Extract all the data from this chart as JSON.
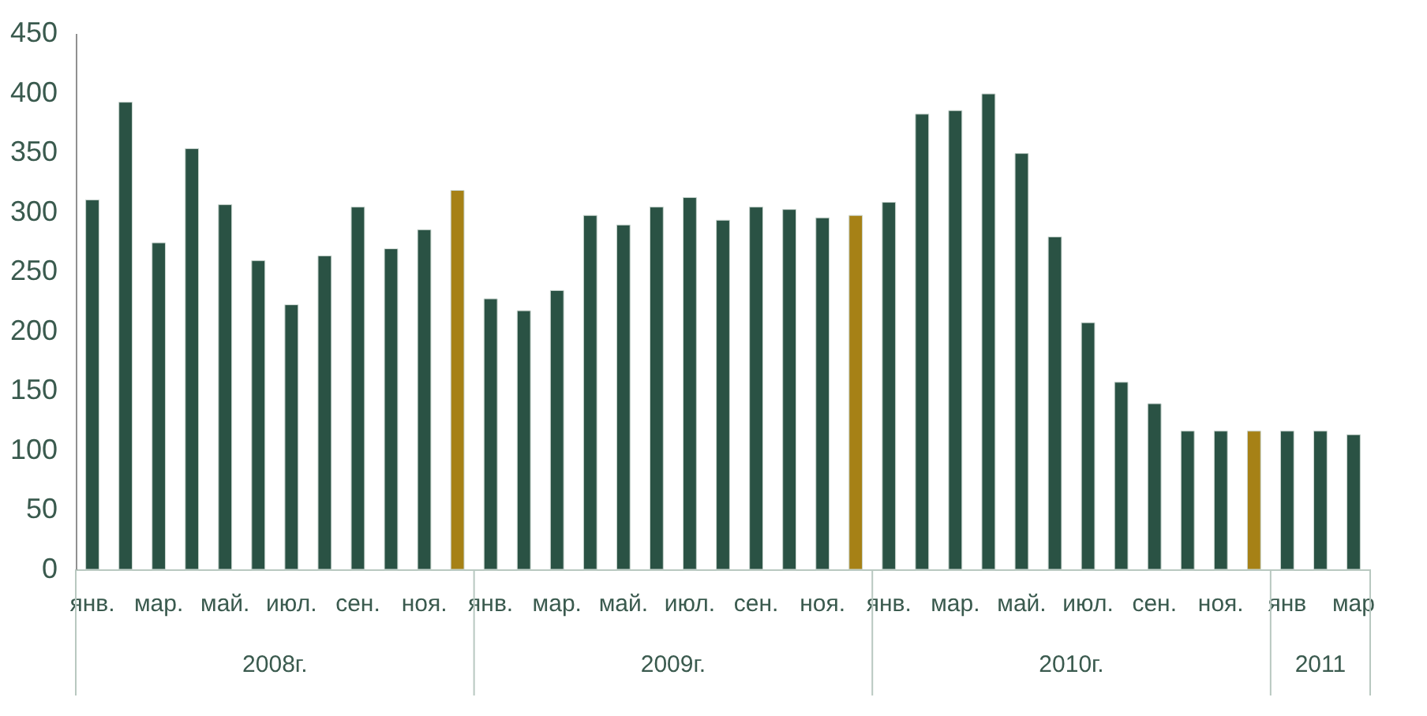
{
  "chart_data": {
    "type": "bar",
    "categories": [
      "янв.",
      null,
      "мар.",
      null,
      "май.",
      null,
      "июл.",
      null,
      "сен.",
      null,
      "ноя.",
      null,
      "янв.",
      null,
      "мар.",
      null,
      "май.",
      null,
      "июл.",
      null,
      "сен.",
      null,
      "ноя.",
      null,
      "янв.",
      null,
      "мар.",
      null,
      "май.",
      null,
      "июл.",
      null,
      "сен.",
      null,
      "ноя.",
      null,
      "янв",
      null,
      "мар"
    ],
    "values": [
      310,
      392,
      274,
      353,
      306,
      259,
      222,
      263,
      304,
      269,
      285,
      318,
      227,
      217,
      234,
      297,
      289,
      304,
      312,
      293,
      304,
      302,
      295,
      297,
      308,
      382,
      385,
      399,
      349,
      279,
      207,
      157,
      139,
      116,
      116,
      116,
      116,
      116,
      113
    ],
    "colors": [
      "#2a5244",
      "#2a5244",
      "#2a5244",
      "#2a5244",
      "#2a5244",
      "#2a5244",
      "#2a5244",
      "#2a5244",
      "#2a5244",
      "#2a5244",
      "#2a5244",
      "#a68116",
      "#2a5244",
      "#2a5244",
      "#2a5244",
      "#2a5244",
      "#2a5244",
      "#2a5244",
      "#2a5244",
      "#2a5244",
      "#2a5244",
      "#2a5244",
      "#2a5244",
      "#a68116",
      "#2a5244",
      "#2a5244",
      "#2a5244",
      "#2a5244",
      "#2a5244",
      "#2a5244",
      "#2a5244",
      "#2a5244",
      "#2a5244",
      "#2a5244",
      "#2a5244",
      "#a68116",
      "#2a5244",
      "#2a5244",
      "#2a5244"
    ],
    "annotations": [
      "2008г.",
      "2009г.",
      "2010г.",
      "2011"
    ],
    "ylim": [
      0,
      450
    ],
    "yticks": [
      0,
      50,
      100,
      150,
      200,
      250,
      300,
      350,
      400,
      450
    ],
    "grid": false
  }
}
